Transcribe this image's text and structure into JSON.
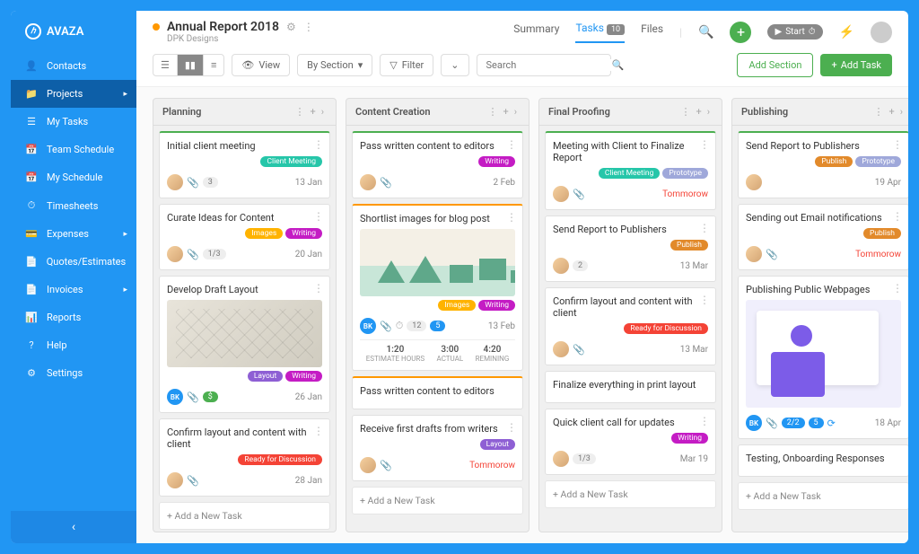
{
  "brand": "AVAZA",
  "nav": [
    {
      "icon": "👤",
      "label": "Contacts"
    },
    {
      "icon": "📁",
      "label": "Projects",
      "active": true,
      "expand": true
    },
    {
      "icon": "☰",
      "label": "My Tasks"
    },
    {
      "icon": "📅",
      "label": "Team Schedule"
    },
    {
      "icon": "📅",
      "label": "My Schedule"
    },
    {
      "icon": "⏱",
      "label": "Timesheets"
    },
    {
      "icon": "💳",
      "label": "Expenses",
      "expand": true
    },
    {
      "icon": "📄",
      "label": "Quotes/Estimates"
    },
    {
      "icon": "📄",
      "label": "Invoices",
      "expand": true
    },
    {
      "icon": "📊",
      "label": "Reports"
    },
    {
      "icon": "?",
      "label": "Help"
    },
    {
      "icon": "⚙",
      "label": "Settings"
    }
  ],
  "project": {
    "title": "Annual Report 2018",
    "subtitle": "DPK Designs"
  },
  "tabs": {
    "summary": "Summary",
    "tasks": "Tasks",
    "tasks_count": "10",
    "files": "Files"
  },
  "toolbar": {
    "view": "View",
    "by_section": "By Section",
    "filter": "Filter",
    "search_placeholder": "Search",
    "add_section": "Add Section",
    "add_task": "Add Task",
    "start": "Start"
  },
  "add_card": "+ Add a New Task",
  "columns": {
    "planning": "Planning",
    "content": "Content Creation",
    "proofing": "Final Proofing",
    "publishing": "Publishing"
  },
  "tags": {
    "client_meeting": {
      "label": "Client Meeting",
      "color": "#26c6a9"
    },
    "images": {
      "label": "Images",
      "color": "#ffb300"
    },
    "writing": {
      "label": "Writing",
      "color": "#c41cc4"
    },
    "layout": {
      "label": "Layout",
      "color": "#8e5fd4"
    },
    "ready": {
      "label": "Ready for Discussion",
      "color": "#f44336"
    },
    "publish": {
      "label": "Publish",
      "color": "#e28a2b"
    },
    "prototype": {
      "label": "Prototype",
      "color": "#9fa8da"
    }
  },
  "cards": {
    "p1": {
      "title": "Initial client meeting",
      "date": "13 Jan",
      "count": "3"
    },
    "p2": {
      "title": "Curate Ideas for Content",
      "date": "20 Jan",
      "count": "1/3"
    },
    "p3": {
      "title": "Develop Draft Layout",
      "date": "26 Jan",
      "money": "$"
    },
    "p4": {
      "title": "Confirm layout and content with client",
      "date": "28 Jan"
    },
    "c1": {
      "title": "Pass written content to editors",
      "date": "2 Feb"
    },
    "c2": {
      "title": "Shortlist images for blog post",
      "date": "13 Feb",
      "clock": "12",
      "est": "1:20",
      "est_l": "ESTIMATE HOURS",
      "act": "3:00",
      "act_l": "ACTUAL",
      "rem": "4:20",
      "rem_l": "REMINING",
      "badge": "5"
    },
    "c3": {
      "title": "Pass written content to editors"
    },
    "c4": {
      "title": "Receive first drafts from writers",
      "date": "Tommorow"
    },
    "f1": {
      "title": "Meeting with Client to Finalize Report",
      "date": "Tommorow"
    },
    "f2": {
      "title": "Send Report to Publishers",
      "date": "13 Mar",
      "count": "2"
    },
    "f3": {
      "title": "Confirm layout and content with client",
      "date": "13 Mar"
    },
    "f4": {
      "title": "Finalize everything in print layout"
    },
    "f5": {
      "title": "Quick client call for updates",
      "date": "Mar 19",
      "count": "1/3"
    },
    "pub1": {
      "title": "Send Report to Publishers",
      "date": "19 Apr"
    },
    "pub2": {
      "title": "Sending out Email notifications",
      "date": "Tommorow"
    },
    "pub3": {
      "title": "Publishing Public Webpages",
      "date": "18 Apr",
      "count": "2/2",
      "badge": "5"
    },
    "pub4": {
      "title": "Testing, Onboarding Responses"
    }
  }
}
